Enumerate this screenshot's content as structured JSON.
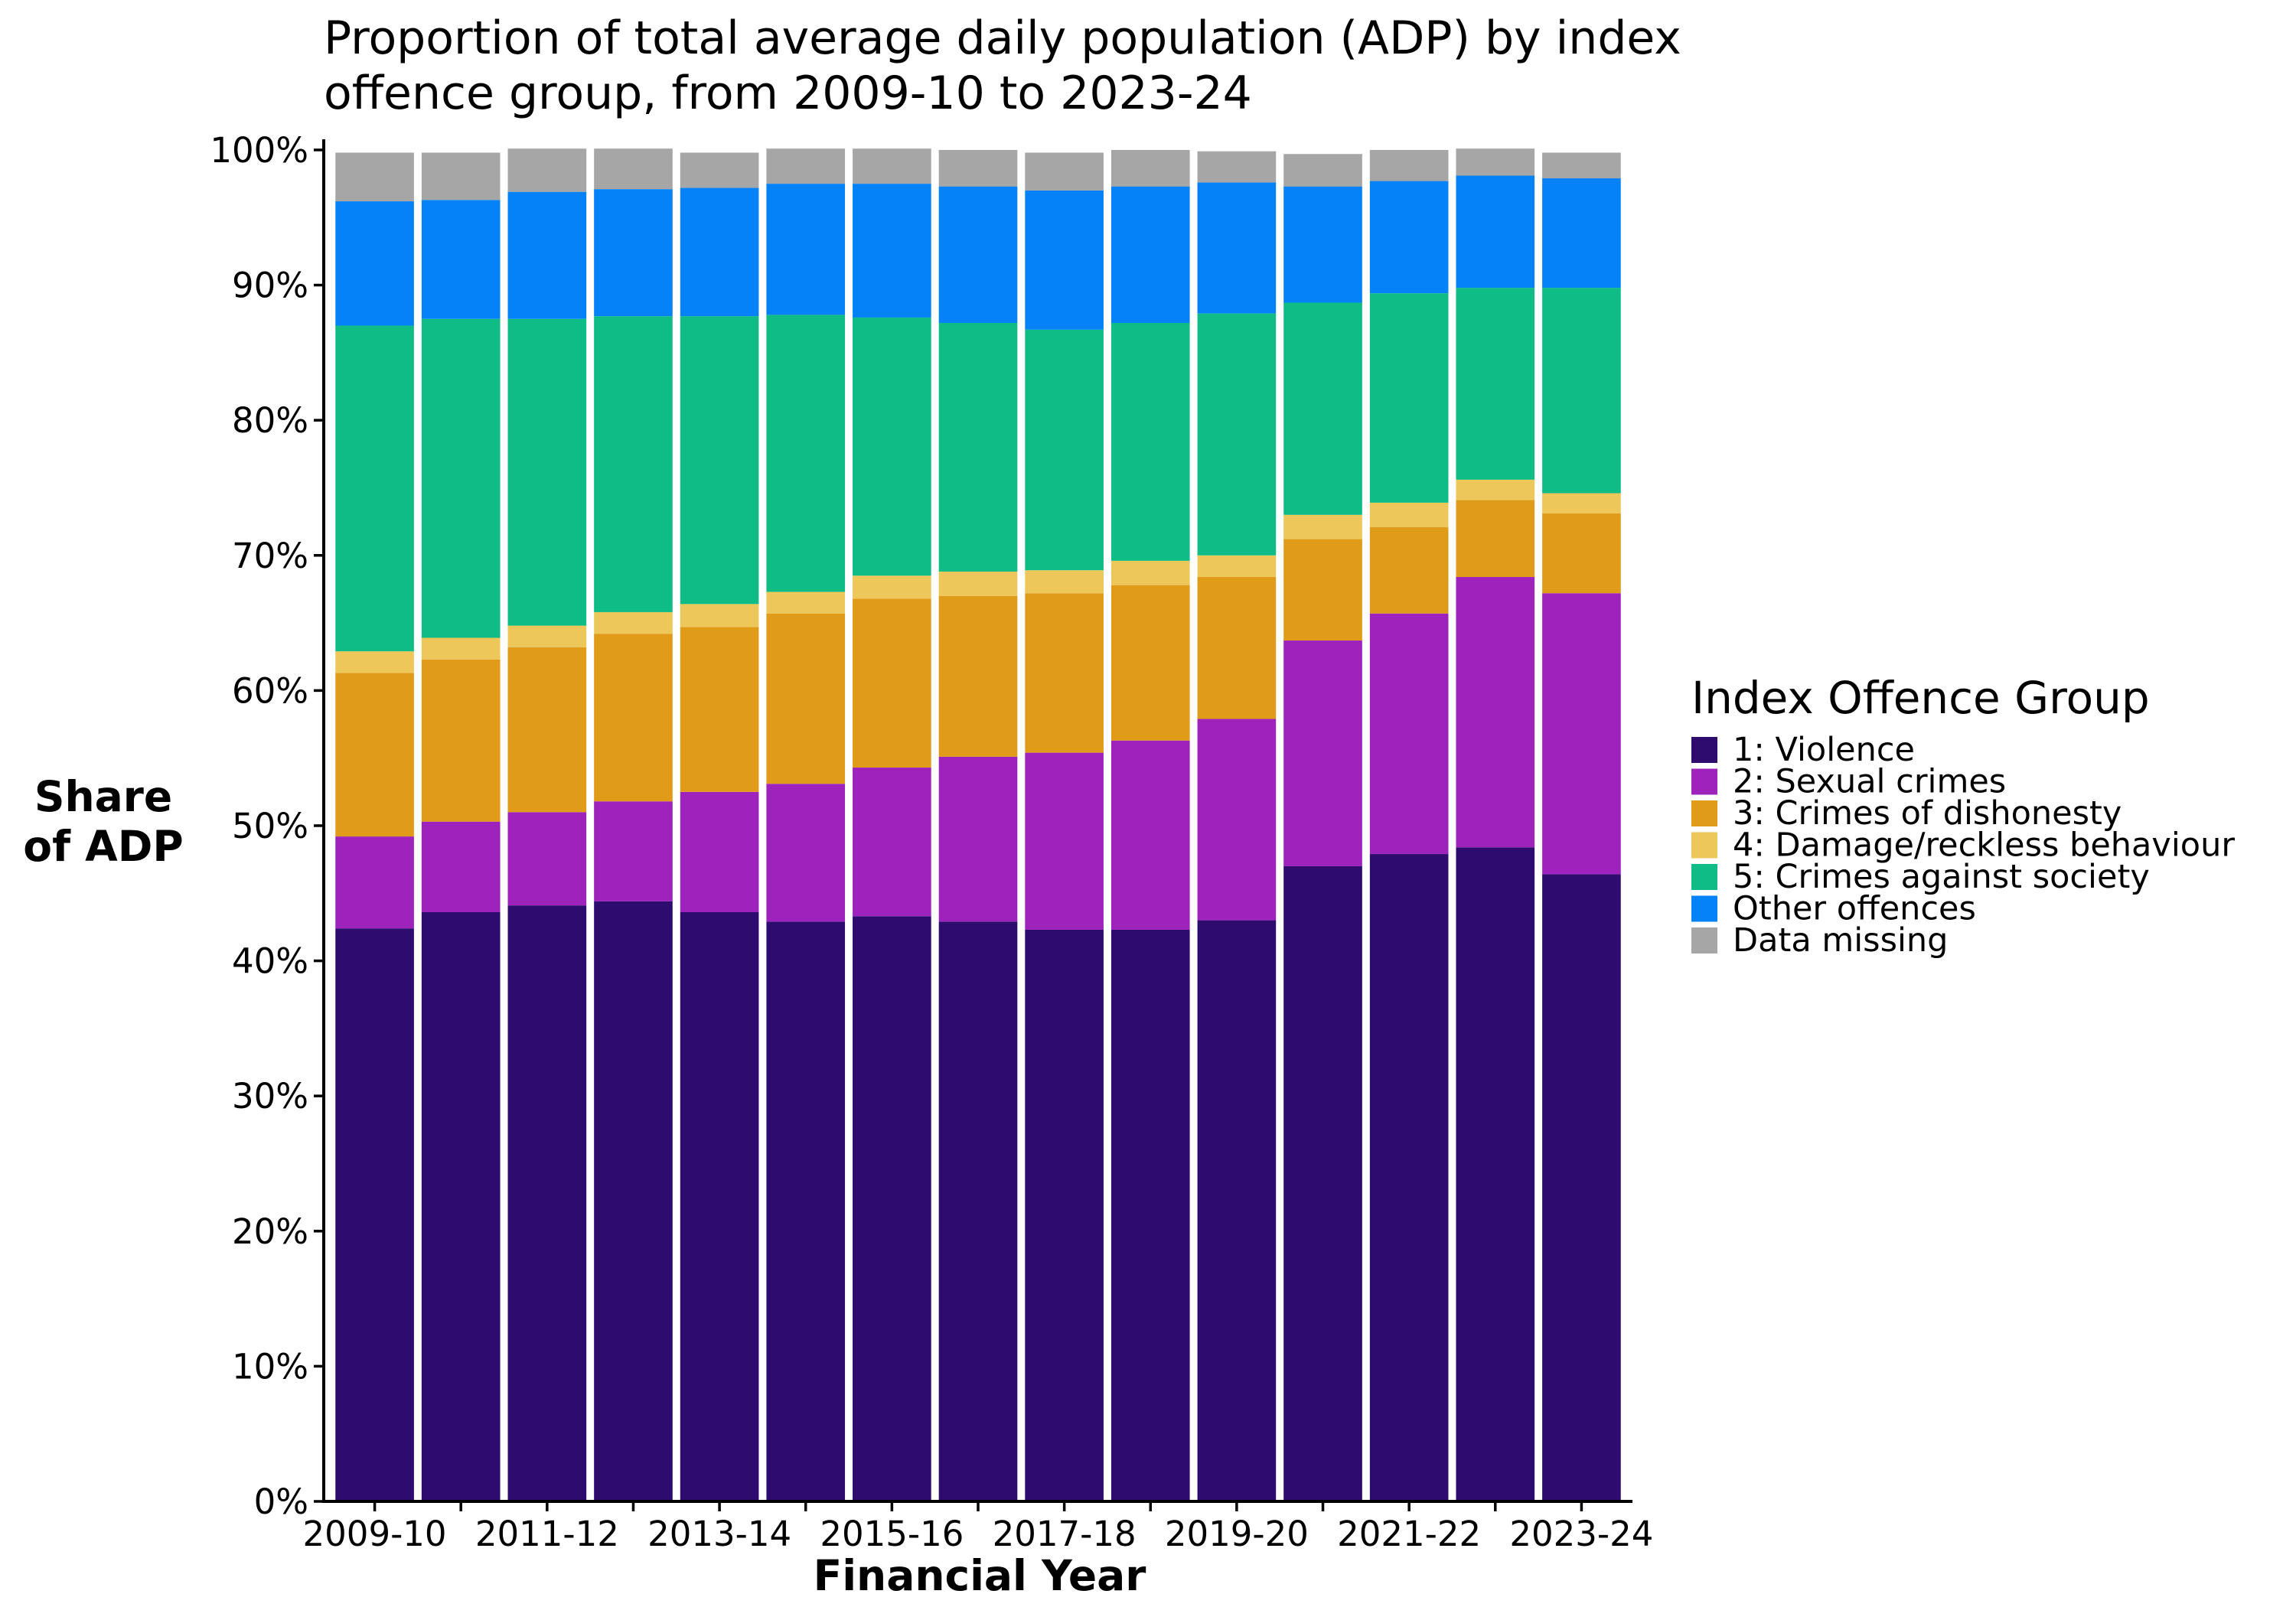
{
  "chart_data": {
    "type": "bar",
    "stacked": true,
    "title_lines": [
      "Proportion of total average daily population (ADP) by index",
      "offence group, from 2009-10 to 2023-24"
    ],
    "xlabel": "Financial Year",
    "ylabel_lines": [
      "Share",
      "of ADP"
    ],
    "ylim": [
      0,
      100
    ],
    "y_ticks": [
      "0%",
      "10%",
      "20%",
      "30%",
      "40%",
      "50%",
      "60%",
      "70%",
      "80%",
      "90%",
      "100%"
    ],
    "x_tick_labels": [
      "2009-10",
      "2011-12",
      "2013-14",
      "2015-16",
      "2017-18",
      "2019-20",
      "2021-22",
      "2023-24"
    ],
    "categories": [
      "2009-10",
      "2010-11",
      "2011-12",
      "2012-13",
      "2013-14",
      "2014-15",
      "2015-16",
      "2016-17",
      "2017-18",
      "2018-19",
      "2019-20",
      "2020-21",
      "2021-22",
      "2022-23",
      "2023-24"
    ],
    "legend_title": "Index Offence Group",
    "legend_position": "right",
    "grid": false,
    "series": [
      {
        "name": "1: Violence",
        "color": "#2e0b6e",
        "values": [
          42.4,
          43.6,
          44.1,
          44.4,
          43.6,
          42.9,
          43.3,
          42.9,
          42.3,
          42.3,
          43.0,
          47.0,
          47.9,
          48.4,
          46.4
        ]
      },
      {
        "name": "2: Sexual crimes",
        "color": "#9e23bd",
        "values": [
          6.8,
          6.7,
          6.9,
          7.4,
          8.9,
          10.2,
          11.0,
          12.2,
          13.1,
          14.0,
          14.9,
          16.7,
          17.8,
          20.0,
          20.8
        ]
      },
      {
        "name": "3: Crimes of dishonesty",
        "color": "#e09b19",
        "values": [
          12.1,
          12.0,
          12.2,
          12.4,
          12.2,
          12.6,
          12.5,
          11.9,
          11.8,
          11.5,
          10.5,
          7.5,
          6.4,
          5.7,
          5.9
        ]
      },
      {
        "name": "4: Damage/reckless behaviour",
        "color": "#edc759",
        "values": [
          1.6,
          1.6,
          1.6,
          1.6,
          1.7,
          1.6,
          1.7,
          1.8,
          1.7,
          1.8,
          1.6,
          1.8,
          1.8,
          1.5,
          1.5
        ]
      },
      {
        "name": "5: Crimes against society",
        "color": "#0fbc85",
        "values": [
          24.1,
          23.6,
          22.7,
          21.9,
          21.3,
          20.5,
          19.1,
          18.4,
          17.8,
          17.6,
          17.9,
          15.7,
          15.5,
          14.2,
          15.2
        ]
      },
      {
        "name": "Other offences",
        "color": "#0582f7",
        "values": [
          9.2,
          8.8,
          9.4,
          9.4,
          9.5,
          9.7,
          9.9,
          10.1,
          10.3,
          10.1,
          9.7,
          8.6,
          8.3,
          8.3,
          8.1
        ]
      },
      {
        "name": "Data missing",
        "color": "#a6a6a6",
        "values": [
          3.6,
          3.5,
          3.2,
          3.0,
          2.6,
          2.6,
          2.6,
          2.7,
          2.8,
          2.7,
          2.3,
          2.4,
          2.3,
          2.0,
          1.9
        ]
      }
    ]
  }
}
